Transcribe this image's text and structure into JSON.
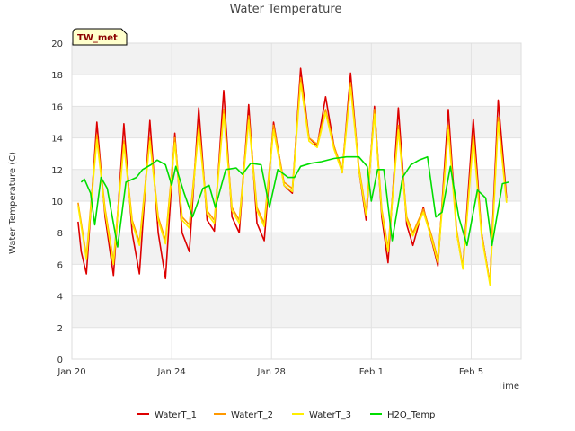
{
  "chart_data": {
    "type": "line",
    "title": "Water Temperature",
    "xlabel": "Time",
    "ylabel": "Water Temperature (C)",
    "ylim": [
      0,
      20
    ],
    "yticks": [
      0,
      2,
      4,
      6,
      8,
      10,
      12,
      14,
      16,
      18,
      20
    ],
    "xlim": [
      "2020-01-20",
      "2020-02-07"
    ],
    "xticks": [
      {
        "date": "2020-01-20",
        "label": "Jan 20"
      },
      {
        "date": "2020-01-24",
        "label": "Jan 24"
      },
      {
        "date": "2020-01-28",
        "label": "Jan 28"
      },
      {
        "date": "2020-02-01",
        "label": "Feb 1"
      },
      {
        "date": "2020-02-05",
        "label": "Feb 5"
      }
    ],
    "grid": true,
    "background": "alternating gray bands",
    "legend_position": "bottom",
    "site_label": "TW_met",
    "series": [
      {
        "name": "WaterT_1",
        "color": "#dd0000",
        "points": [
          [
            "2020-01-20T06:00",
            8.7
          ],
          [
            "2020-01-20T09:00",
            6.8
          ],
          [
            "2020-01-20T14:00",
            5.4
          ],
          [
            "2020-01-21T00:00",
            15.0
          ],
          [
            "2020-01-21T08:00",
            9.0
          ],
          [
            "2020-01-21T16:00",
            5.3
          ],
          [
            "2020-01-22T02:00",
            14.9
          ],
          [
            "2020-01-22T10:00",
            8.0
          ],
          [
            "2020-01-22T17:00",
            5.4
          ],
          [
            "2020-01-23T03:00",
            15.1
          ],
          [
            "2020-01-23T11:00",
            8.0
          ],
          [
            "2020-01-23T18:00",
            5.1
          ],
          [
            "2020-01-24T03:00",
            14.3
          ],
          [
            "2020-01-24T10:00",
            8.0
          ],
          [
            "2020-01-24T17:00",
            6.8
          ],
          [
            "2020-01-25T02:00",
            15.9
          ],
          [
            "2020-01-25T10:00",
            8.8
          ],
          [
            "2020-01-25T17:00",
            8.1
          ],
          [
            "2020-01-26T02:00",
            17.0
          ],
          [
            "2020-01-26T10:00",
            9.0
          ],
          [
            "2020-01-26T17:00",
            8.0
          ],
          [
            "2020-01-27T02:00",
            16.1
          ],
          [
            "2020-01-27T10:00",
            8.6
          ],
          [
            "2020-01-27T17:00",
            7.5
          ],
          [
            "2020-01-28T02:00",
            15.0
          ],
          [
            "2020-01-28T12:00",
            11.0
          ],
          [
            "2020-01-28T20:00",
            10.5
          ],
          [
            "2020-01-29T04:00",
            18.4
          ],
          [
            "2020-01-29T12:00",
            14.0
          ],
          [
            "2020-01-29T20:00",
            13.5
          ],
          [
            "2020-01-30T04:00",
            16.6
          ],
          [
            "2020-01-30T12:00",
            13.5
          ],
          [
            "2020-01-30T20:00",
            11.8
          ],
          [
            "2020-01-31T04:00",
            18.1
          ],
          [
            "2020-01-31T12:00",
            12.0
          ],
          [
            "2020-01-31T19:00",
            8.8
          ],
          [
            "2020-02-01T03:00",
            16.0
          ],
          [
            "2020-02-01T10:00",
            9.0
          ],
          [
            "2020-02-01T16:00",
            6.1
          ],
          [
            "2020-02-02T02:00",
            15.9
          ],
          [
            "2020-02-02T10:00",
            8.5
          ],
          [
            "2020-02-02T16:00",
            7.2
          ],
          [
            "2020-02-03T02:00",
            9.6
          ],
          [
            "2020-02-03T10:00",
            7.5
          ],
          [
            "2020-02-03T16:00",
            5.9
          ],
          [
            "2020-02-04T02:00",
            15.8
          ],
          [
            "2020-02-04T10:00",
            8.0
          ],
          [
            "2020-02-04T16:00",
            5.8
          ],
          [
            "2020-02-05T02:00",
            15.2
          ],
          [
            "2020-02-05T10:00",
            8.0
          ],
          [
            "2020-02-05T18:00",
            4.8
          ],
          [
            "2020-02-06T02:00",
            16.4
          ],
          [
            "2020-02-06T10:00",
            10.2
          ]
        ]
      },
      {
        "name": "WaterT_2",
        "color": "#ff9900",
        "points": [
          [
            "2020-01-20T06:00",
            9.9
          ],
          [
            "2020-01-20T14:00",
            6.5
          ],
          [
            "2020-01-21T00:00",
            14.2
          ],
          [
            "2020-01-21T08:00",
            9.5
          ],
          [
            "2020-01-21T16:00",
            6.2
          ],
          [
            "2020-01-22T02:00",
            13.8
          ],
          [
            "2020-01-22T10:00",
            8.8
          ],
          [
            "2020-01-22T17:00",
            7.4
          ],
          [
            "2020-01-23T03:00",
            14.0
          ],
          [
            "2020-01-23T11:00",
            9.0
          ],
          [
            "2020-01-23T18:00",
            7.5
          ],
          [
            "2020-01-24T03:00",
            14.0
          ],
          [
            "2020-01-24T10:00",
            9.0
          ],
          [
            "2020-01-24T17:00",
            8.5
          ],
          [
            "2020-01-25T02:00",
            14.8
          ],
          [
            "2020-01-25T10:00",
            9.4
          ],
          [
            "2020-01-25T17:00",
            8.8
          ],
          [
            "2020-01-26T02:00",
            15.8
          ],
          [
            "2020-01-26T10:00",
            9.6
          ],
          [
            "2020-01-26T17:00",
            8.8
          ],
          [
            "2020-01-27T02:00",
            15.4
          ],
          [
            "2020-01-27T10:00",
            9.6
          ],
          [
            "2020-01-27T17:00",
            8.6
          ],
          [
            "2020-01-28T02:00",
            14.8
          ],
          [
            "2020-01-28T12:00",
            11.2
          ],
          [
            "2020-01-28T20:00",
            10.8
          ],
          [
            "2020-01-29T04:00",
            17.8
          ],
          [
            "2020-01-29T12:00",
            14.0
          ],
          [
            "2020-01-29T20:00",
            13.6
          ],
          [
            "2020-01-30T04:00",
            15.8
          ],
          [
            "2020-01-30T12:00",
            13.5
          ],
          [
            "2020-01-30T20:00",
            12.0
          ],
          [
            "2020-01-31T04:00",
            17.5
          ],
          [
            "2020-01-31T12:00",
            12.2
          ],
          [
            "2020-01-31T19:00",
            9.3
          ],
          [
            "2020-02-01T03:00",
            15.8
          ],
          [
            "2020-02-01T10:00",
            9.5
          ],
          [
            "2020-02-01T16:00",
            7.0
          ],
          [
            "2020-02-02T02:00",
            14.8
          ],
          [
            "2020-02-02T10:00",
            9.0
          ],
          [
            "2020-02-02T16:00",
            8.0
          ],
          [
            "2020-02-03T02:00",
            9.5
          ],
          [
            "2020-02-03T10:00",
            7.8
          ],
          [
            "2020-02-03T16:00",
            6.3
          ],
          [
            "2020-02-04T02:00",
            14.8
          ],
          [
            "2020-02-04T10:00",
            8.2
          ],
          [
            "2020-02-04T16:00",
            5.8
          ],
          [
            "2020-02-05T02:00",
            14.2
          ],
          [
            "2020-02-05T10:00",
            8.0
          ],
          [
            "2020-02-05T18:00",
            4.8
          ],
          [
            "2020-02-06T02:00",
            15.3
          ],
          [
            "2020-02-06T10:00",
            10.0
          ]
        ]
      },
      {
        "name": "WaterT_3",
        "color": "#ffee00",
        "points": [
          [
            "2020-01-20T06:00",
            9.7
          ],
          [
            "2020-01-20T14:00",
            6.3
          ],
          [
            "2020-01-21T00:00",
            13.9
          ],
          [
            "2020-01-21T08:00",
            9.3
          ],
          [
            "2020-01-21T16:00",
            6.0
          ],
          [
            "2020-01-22T02:00",
            13.6
          ],
          [
            "2020-01-22T10:00",
            8.6
          ],
          [
            "2020-01-22T17:00",
            7.2
          ],
          [
            "2020-01-23T03:00",
            13.8
          ],
          [
            "2020-01-23T11:00",
            8.8
          ],
          [
            "2020-01-23T18:00",
            7.3
          ],
          [
            "2020-01-24T03:00",
            13.7
          ],
          [
            "2020-01-24T10:00",
            8.8
          ],
          [
            "2020-01-24T17:00",
            8.3
          ],
          [
            "2020-01-25T02:00",
            14.5
          ],
          [
            "2020-01-25T10:00",
            9.2
          ],
          [
            "2020-01-25T17:00",
            8.6
          ],
          [
            "2020-01-26T02:00",
            15.5
          ],
          [
            "2020-01-26T10:00",
            9.4
          ],
          [
            "2020-01-26T17:00",
            8.6
          ],
          [
            "2020-01-27T02:00",
            15.1
          ],
          [
            "2020-01-27T10:00",
            9.4
          ],
          [
            "2020-01-27T17:00",
            8.4
          ],
          [
            "2020-01-28T02:00",
            14.5
          ],
          [
            "2020-01-28T12:00",
            11.0
          ],
          [
            "2020-01-28T20:00",
            10.6
          ],
          [
            "2020-01-29T04:00",
            17.5
          ],
          [
            "2020-01-29T12:00",
            13.8
          ],
          [
            "2020-01-29T20:00",
            13.4
          ],
          [
            "2020-01-30T04:00",
            15.6
          ],
          [
            "2020-01-30T12:00",
            13.3
          ],
          [
            "2020-01-30T20:00",
            11.8
          ],
          [
            "2020-01-31T04:00",
            17.2
          ],
          [
            "2020-01-31T12:00",
            12.0
          ],
          [
            "2020-01-31T19:00",
            9.1
          ],
          [
            "2020-02-01T03:00",
            15.5
          ],
          [
            "2020-02-01T10:00",
            9.3
          ],
          [
            "2020-02-01T16:00",
            6.8
          ],
          [
            "2020-02-02T02:00",
            14.5
          ],
          [
            "2020-02-02T10:00",
            8.8
          ],
          [
            "2020-02-02T16:00",
            7.8
          ],
          [
            "2020-02-03T02:00",
            9.3
          ],
          [
            "2020-02-03T10:00",
            7.6
          ],
          [
            "2020-02-03T16:00",
            6.1
          ],
          [
            "2020-02-04T02:00",
            14.5
          ],
          [
            "2020-02-04T10:00",
            8.0
          ],
          [
            "2020-02-04T16:00",
            5.7
          ],
          [
            "2020-02-05T02:00",
            13.9
          ],
          [
            "2020-02-05T10:00",
            7.8
          ],
          [
            "2020-02-05T18:00",
            4.7
          ],
          [
            "2020-02-06T02:00",
            15.0
          ],
          [
            "2020-02-06T10:00",
            9.9
          ]
        ]
      },
      {
        "name": "H2O_Temp",
        "color": "#00dd00",
        "points": [
          [
            "2020-01-20T09:00",
            11.2
          ],
          [
            "2020-01-20T12:00",
            11.4
          ],
          [
            "2020-01-20T18:00",
            10.5
          ],
          [
            "2020-01-20T22:00",
            8.5
          ],
          [
            "2020-01-21T04:00",
            11.5
          ],
          [
            "2020-01-21T10:00",
            10.8
          ],
          [
            "2020-01-21T20:00",
            7.1
          ],
          [
            "2020-01-22T04:00",
            11.2
          ],
          [
            "2020-01-22T14:00",
            11.5
          ],
          [
            "2020-01-22T20:00",
            12.0
          ],
          [
            "2020-01-23T04:00",
            12.3
          ],
          [
            "2020-01-23T10:00",
            12.6
          ],
          [
            "2020-01-23T18:00",
            12.3
          ],
          [
            "2020-01-24T00:00",
            11.0
          ],
          [
            "2020-01-24T04:00",
            12.2
          ],
          [
            "2020-01-24T12:00",
            10.5
          ],
          [
            "2020-01-24T20:00",
            9.0
          ],
          [
            "2020-01-25T06:00",
            10.8
          ],
          [
            "2020-01-25T12:00",
            11.0
          ],
          [
            "2020-01-25T18:00",
            9.6
          ],
          [
            "2020-01-26T04:00",
            12.0
          ],
          [
            "2020-01-26T14:00",
            12.1
          ],
          [
            "2020-01-26T20:00",
            11.7
          ],
          [
            "2020-01-27T04:00",
            12.4
          ],
          [
            "2020-01-27T14:00",
            12.3
          ],
          [
            "2020-01-27T22:00",
            9.6
          ],
          [
            "2020-01-28T06:00",
            12.0
          ],
          [
            "2020-01-28T16:00",
            11.5
          ],
          [
            "2020-01-28T22:00",
            11.5
          ],
          [
            "2020-01-29T04:00",
            12.2
          ],
          [
            "2020-01-29T14:00",
            12.4
          ],
          [
            "2020-01-30T00:00",
            12.5
          ],
          [
            "2020-01-30T12:00",
            12.7
          ],
          [
            "2020-01-31T00:00",
            12.8
          ],
          [
            "2020-01-31T12:00",
            12.8
          ],
          [
            "2020-01-31T20:00",
            12.2
          ],
          [
            "2020-02-01T00:00",
            10.0
          ],
          [
            "2020-02-01T06:00",
            12.0
          ],
          [
            "2020-02-01T12:00",
            12.0
          ],
          [
            "2020-02-01T20:00",
            7.5
          ],
          [
            "2020-02-02T06:00",
            11.5
          ],
          [
            "2020-02-02T14:00",
            12.3
          ],
          [
            "2020-02-02T22:00",
            12.6
          ],
          [
            "2020-02-03T06:00",
            12.8
          ],
          [
            "2020-02-03T14:00",
            9.0
          ],
          [
            "2020-02-03T20:00",
            9.3
          ],
          [
            "2020-02-04T04:00",
            12.2
          ],
          [
            "2020-02-04T12:00",
            9.0
          ],
          [
            "2020-02-04T20:00",
            7.2
          ],
          [
            "2020-02-05T06:00",
            10.7
          ],
          [
            "2020-02-05T14:00",
            10.2
          ],
          [
            "2020-02-05T20:00",
            7.2
          ],
          [
            "2020-02-06T06:00",
            11.1
          ],
          [
            "2020-02-06T12:00",
            11.2
          ]
        ]
      }
    ]
  }
}
